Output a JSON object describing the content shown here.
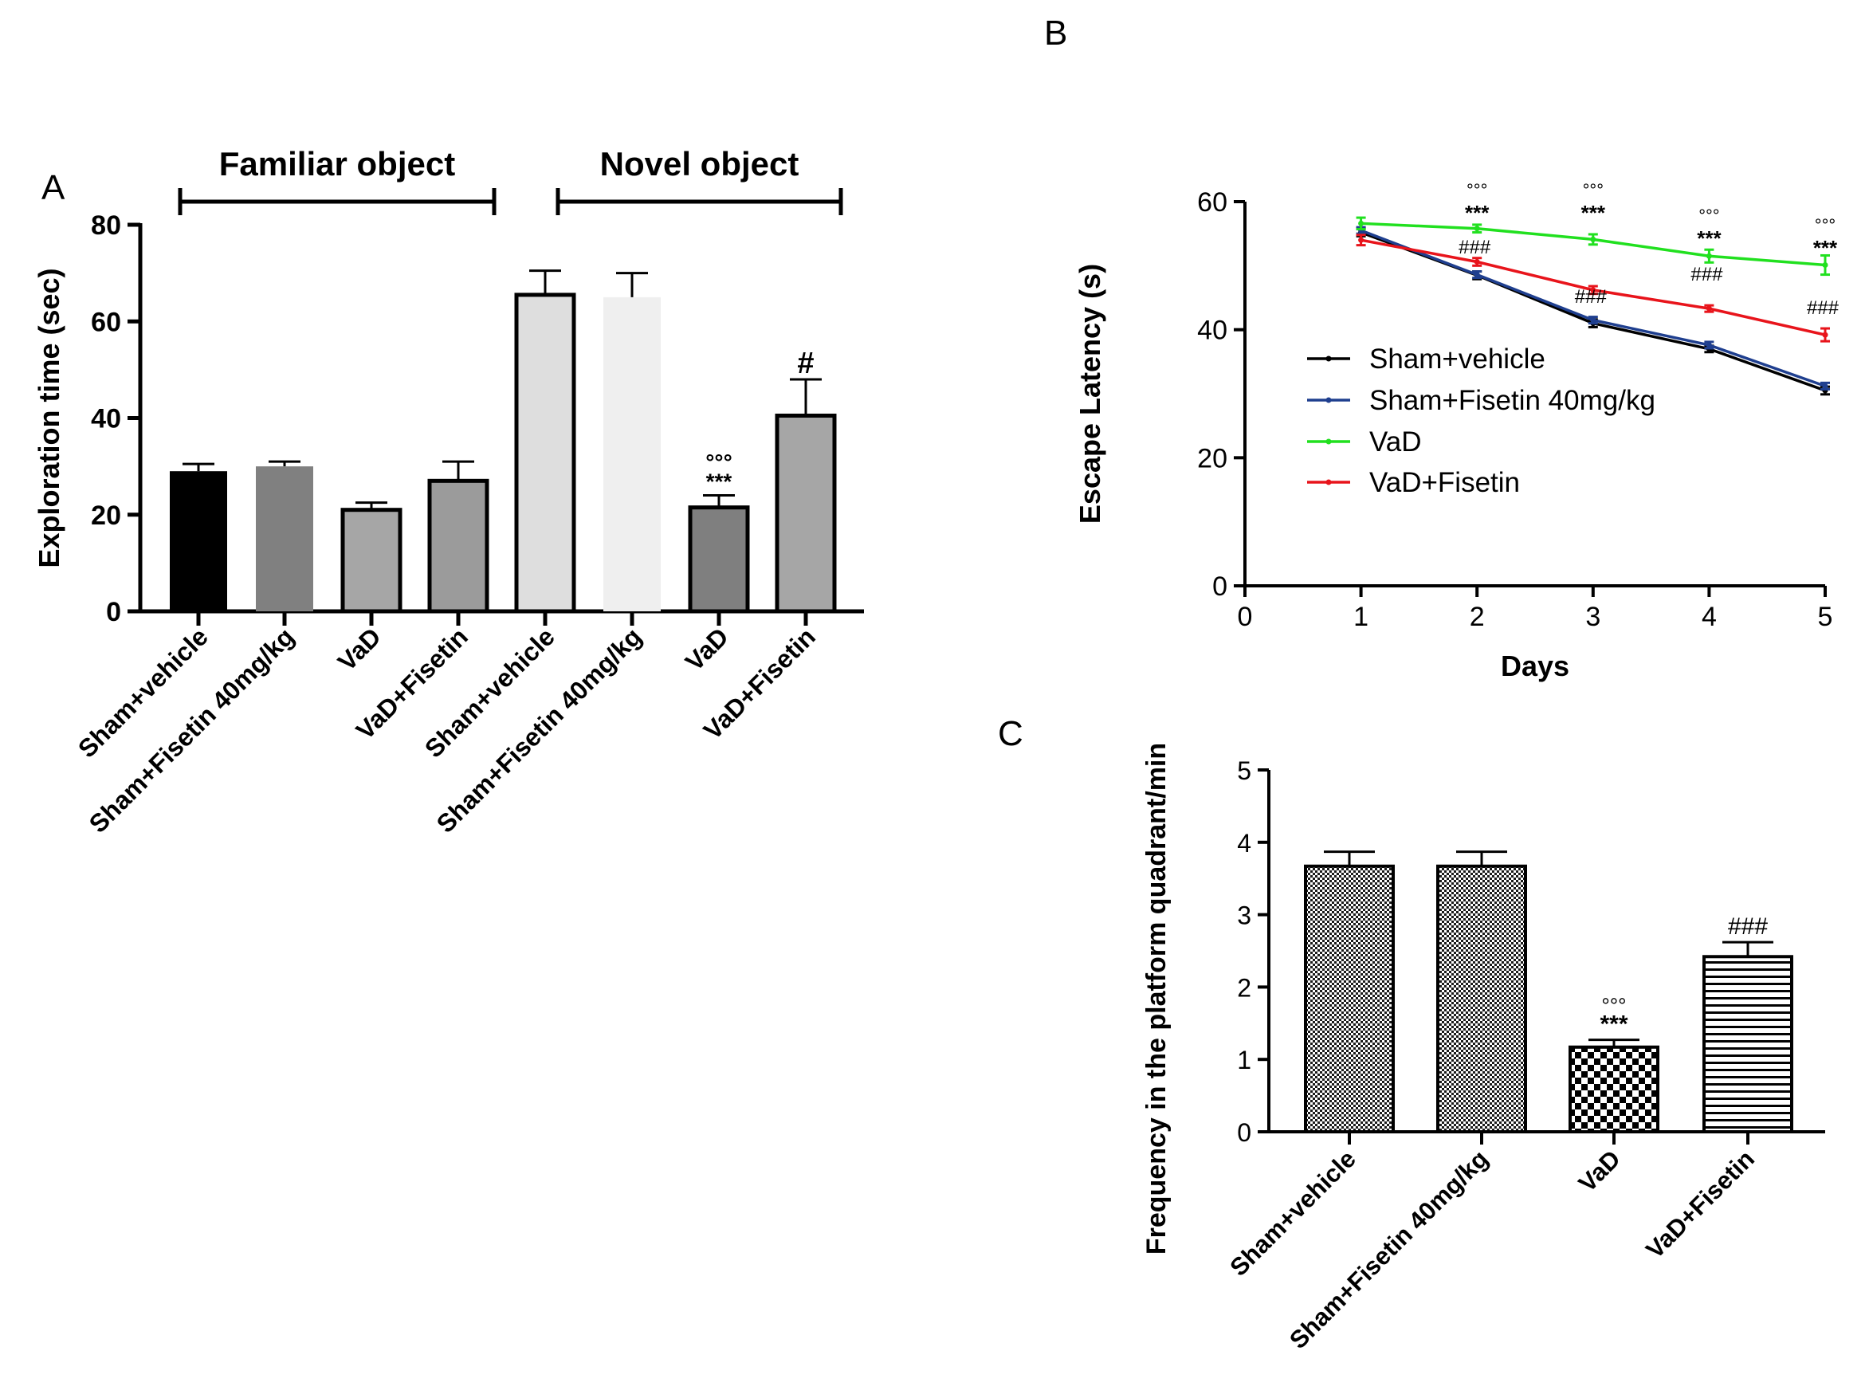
{
  "chart_data": [
    {
      "id": "A",
      "panel_label": "A",
      "type": "bar",
      "title": "",
      "xlabel": "",
      "ylabel": "Exploration time (sec)",
      "ylim": [
        0,
        80
      ],
      "yticks": [
        0,
        20,
        40,
        60,
        80
      ],
      "groups": [
        "Familiar object",
        "Novel object"
      ],
      "bars": [
        {
          "category": "Sham+vehicle",
          "group": "Familiar object",
          "value": 29,
          "error": 1.5,
          "fill": "#000000",
          "annotations": []
        },
        {
          "category": "Sham+Fisetin 40mg/kg",
          "group": "Familiar object",
          "value": 30,
          "error": 1.0,
          "fill": "#808080",
          "annotations": []
        },
        {
          "category": "VaD",
          "group": "Familiar object",
          "value": 21,
          "error": 1.5,
          "fill": "#a6a6a6",
          "annotations": []
        },
        {
          "category": "VaD+Fisetin",
          "group": "Familiar object",
          "value": 27,
          "error": 4.0,
          "fill": "#9b9b9b",
          "annotations": []
        },
        {
          "category": "Sham+vehicle",
          "group": "Novel object",
          "value": 65.5,
          "error": 5.0,
          "fill": "#dedede",
          "annotations": []
        },
        {
          "category": "Sham+Fisetin 40mg/kg",
          "group": "Novel object",
          "value": 65,
          "error": 5.0,
          "fill": "#efefef",
          "annotations": []
        },
        {
          "category": "VaD",
          "group": "Novel object",
          "value": 21.5,
          "error": 2.5,
          "fill": "#7f7f7f",
          "annotations": [
            "°°°",
            "***"
          ]
        },
        {
          "category": "VaD+Fisetin",
          "group": "Novel object",
          "value": 40.5,
          "error": 7.5,
          "fill": "#a6a6a6",
          "annotations": [
            "#"
          ]
        }
      ]
    },
    {
      "id": "B",
      "panel_label": "B",
      "type": "line",
      "title": "",
      "xlabel": "Days",
      "ylabel": "Escape Latency (s)",
      "xlim": [
        0,
        5
      ],
      "ylim": [
        0,
        60
      ],
      "xticks": [
        0,
        1,
        2,
        3,
        4,
        5
      ],
      "yticks": [
        0,
        20,
        40,
        60
      ],
      "x": [
        1,
        2,
        3,
        4,
        5
      ],
      "series": [
        {
          "name": "Sham+vehicle",
          "color": "#000000",
          "values": [
            55.2,
            48.5,
            41,
            37,
            30.5
          ],
          "errors": [
            0.6,
            0.6,
            0.6,
            0.5,
            0.6
          ]
        },
        {
          "name": "Sham+Fisetin 40mg/kg",
          "color": "#1f3f8f",
          "values": [
            55.5,
            48.6,
            41.5,
            37.6,
            31.2
          ],
          "errors": [
            0.5,
            0.5,
            0.5,
            0.5,
            0.5
          ]
        },
        {
          "name": "VaD",
          "color": "#21e01f",
          "values": [
            56.6,
            55.8,
            54.1,
            51.5,
            50.1
          ],
          "errors": [
            0.9,
            0.6,
            0.8,
            1.0,
            1.5
          ]
        },
        {
          "name": "VaD+Fisetin",
          "color": "#e8141b",
          "values": [
            54,
            50.6,
            46.2,
            43.3,
            39.2
          ],
          "errors": [
            0.8,
            0.6,
            0.6,
            0.5,
            1.0
          ]
        }
      ],
      "annotations": [
        {
          "x": 2,
          "lines": [
            "°°°",
            "***",
            "###"
          ]
        },
        {
          "x": 3,
          "lines": [
            "°°°",
            "***",
            "###"
          ]
        },
        {
          "x": 4,
          "lines": [
            "°°°",
            "***",
            "###"
          ]
        },
        {
          "x": 5,
          "lines": [
            "°°°",
            "***",
            "###"
          ]
        }
      ],
      "legend_position": "center-left"
    },
    {
      "id": "C",
      "panel_label": "C",
      "type": "bar",
      "title": "",
      "xlabel": "",
      "ylabel": "Frequency in the platform  quadrant/min",
      "ylim": [
        0,
        5
      ],
      "yticks": [
        0,
        1,
        2,
        3,
        4,
        5
      ],
      "bars": [
        {
          "category": "Sham+vehicle",
          "value": 3.67,
          "error": 0.2,
          "pattern": "dense-dots",
          "annotations": []
        },
        {
          "category": "Sham+Fisetin 40mg/kg",
          "value": 3.67,
          "error": 0.2,
          "pattern": "dense-dots",
          "annotations": []
        },
        {
          "category": "VaD",
          "value": 1.17,
          "error": 0.1,
          "pattern": "checker",
          "annotations": [
            "°°°",
            "***"
          ]
        },
        {
          "category": "VaD+Fisetin",
          "value": 2.42,
          "error": 0.2,
          "pattern": "horizontal-lines",
          "annotations": [
            "###"
          ]
        }
      ]
    }
  ]
}
